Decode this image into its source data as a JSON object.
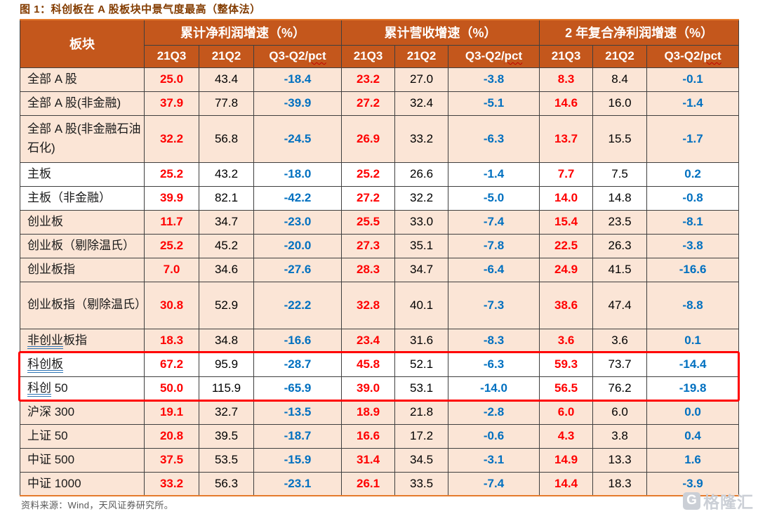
{
  "figure": {
    "title": "图 1：科创板在 A 股板块中景气度最高（整体法）",
    "source_note": "资料来源：Wind，天风证券研究所。"
  },
  "watermark": {
    "brand": "格隆汇",
    "icon_letter": "G"
  },
  "colors": {
    "header_bg": "#C4571C",
    "row_pink": "#FBE5D6",
    "value_red": "#FF0000",
    "value_blue": "#0070C0",
    "grid_border": "#3F3F3F",
    "outer_orange": "#E57B2C",
    "title_color": "#833C00",
    "source_color": "#595959",
    "watermark_gray": "#CBCFD6",
    "highlight_red": "#FF0000"
  },
  "chart_data": {
    "type": "table",
    "title": "图 1：科创板在 A 股板块中景气度最高（整体法）",
    "corner_header": "板块",
    "column_groups": [
      "累计净利润增速（%）",
      "累计营收增速（%）",
      "2 年复合净利润增速（%）"
    ],
    "sub_columns": [
      "21Q3",
      "21Q2",
      "Q3-Q2/pct"
    ],
    "source": "Wind，天风证券研究所",
    "rows": [
      {
        "label": "全部 A 股",
        "shade": "pink",
        "twoline": false,
        "highlight": false,
        "ulen": 0,
        "values": [
          "25.0",
          "43.4",
          "-18.4",
          "23.2",
          "27.0",
          "-3.8",
          "8.3",
          "8.4",
          "-0.1"
        ]
      },
      {
        "label": "全部 A 股(非金融)",
        "shade": "pink",
        "twoline": false,
        "highlight": false,
        "ulen": 0,
        "values": [
          "37.9",
          "77.8",
          "-39.9",
          "27.2",
          "32.4",
          "-5.1",
          "14.6",
          "16.0",
          "-1.4"
        ]
      },
      {
        "label": "全部 A 股(非金融石油石化)",
        "shade": "pink",
        "twoline": true,
        "highlight": false,
        "ulen": 0,
        "values": [
          "32.2",
          "56.8",
          "-24.5",
          "26.9",
          "33.2",
          "-6.3",
          "13.7",
          "15.5",
          "-1.7"
        ]
      },
      {
        "label": "主板",
        "shade": "white",
        "twoline": false,
        "highlight": false,
        "ulen": 0,
        "values": [
          "25.2",
          "43.2",
          "-18.0",
          "25.2",
          "26.6",
          "-1.4",
          "7.7",
          "7.5",
          "0.2"
        ]
      },
      {
        "label": "主板（非金融）",
        "shade": "white",
        "twoline": false,
        "highlight": false,
        "ulen": 0,
        "values": [
          "39.9",
          "82.1",
          "-42.2",
          "27.2",
          "32.2",
          "-5.0",
          "14.0",
          "14.8",
          "-0.8"
        ]
      },
      {
        "label": "创业板",
        "shade": "pink",
        "twoline": false,
        "highlight": false,
        "ulen": 0,
        "values": [
          "11.7",
          "34.7",
          "-23.0",
          "25.5",
          "33.0",
          "-7.4",
          "15.4",
          "23.5",
          "-8.1"
        ]
      },
      {
        "label": "创业板（剔除温氏）",
        "shade": "pink",
        "twoline": false,
        "highlight": false,
        "ulen": 0,
        "values": [
          "25.2",
          "45.2",
          "-20.0",
          "27.3",
          "35.1",
          "-7.8",
          "22.5",
          "26.3",
          "-3.8"
        ]
      },
      {
        "label": "创业板指",
        "shade": "pink",
        "twoline": false,
        "highlight": false,
        "ulen": 0,
        "values": [
          "7.0",
          "34.6",
          "-27.6",
          "28.3",
          "34.7",
          "-6.4",
          "24.9",
          "41.5",
          "-16.6"
        ]
      },
      {
        "label": "创业板指（剔除温氏）",
        "shade": "pink",
        "twoline": true,
        "highlight": false,
        "ulen": 0,
        "values": [
          "30.8",
          "52.9",
          "-22.2",
          "32.8",
          "40.1",
          "-7.3",
          "38.6",
          "47.4",
          "-8.8"
        ]
      },
      {
        "label": "非创业板指",
        "shade": "pink",
        "twoline": false,
        "highlight": false,
        "ulen": 3,
        "values": [
          "18.3",
          "34.8",
          "-16.6",
          "23.4",
          "31.6",
          "-8.3",
          "3.6",
          "3.6",
          "0.1"
        ]
      },
      {
        "label": "科创板",
        "shade": "white",
        "twoline": false,
        "highlight": true,
        "ulen": 3,
        "values": [
          "67.2",
          "95.9",
          "-28.7",
          "45.8",
          "52.1",
          "-6.3",
          "59.3",
          "73.7",
          "-14.4"
        ]
      },
      {
        "label": "科创 50",
        "shade": "white",
        "twoline": false,
        "highlight": true,
        "ulen": 2,
        "values": [
          "50.0",
          "115.9",
          "-65.9",
          "39.0",
          "53.1",
          "-14.0",
          "56.5",
          "76.2",
          "-19.8"
        ]
      },
      {
        "label": "沪深 300",
        "shade": "pink",
        "twoline": false,
        "highlight": false,
        "ulen": 0,
        "values": [
          "19.1",
          "32.7",
          "-13.5",
          "18.9",
          "21.8",
          "-2.8",
          "6.0",
          "6.0",
          "0.0"
        ]
      },
      {
        "label": "上证 50",
        "shade": "pink",
        "twoline": false,
        "highlight": false,
        "ulen": 0,
        "values": [
          "20.8",
          "39.5",
          "-18.7",
          "16.6",
          "17.2",
          "-0.6",
          "4.3",
          "3.8",
          "0.4"
        ]
      },
      {
        "label": "中证 500",
        "shade": "pink",
        "twoline": false,
        "highlight": false,
        "ulen": 0,
        "values": [
          "37.5",
          "53.5",
          "-15.9",
          "31.4",
          "34.5",
          "-3.1",
          "14.9",
          "13.3",
          "1.6"
        ]
      },
      {
        "label": "中证 1000",
        "shade": "pink",
        "twoline": false,
        "highlight": false,
        "ulen": 0,
        "values": [
          "33.2",
          "56.3",
          "-23.1",
          "26.1",
          "33.5",
          "-7.4",
          "14.4",
          "18.3",
          "-3.9"
        ]
      }
    ]
  }
}
